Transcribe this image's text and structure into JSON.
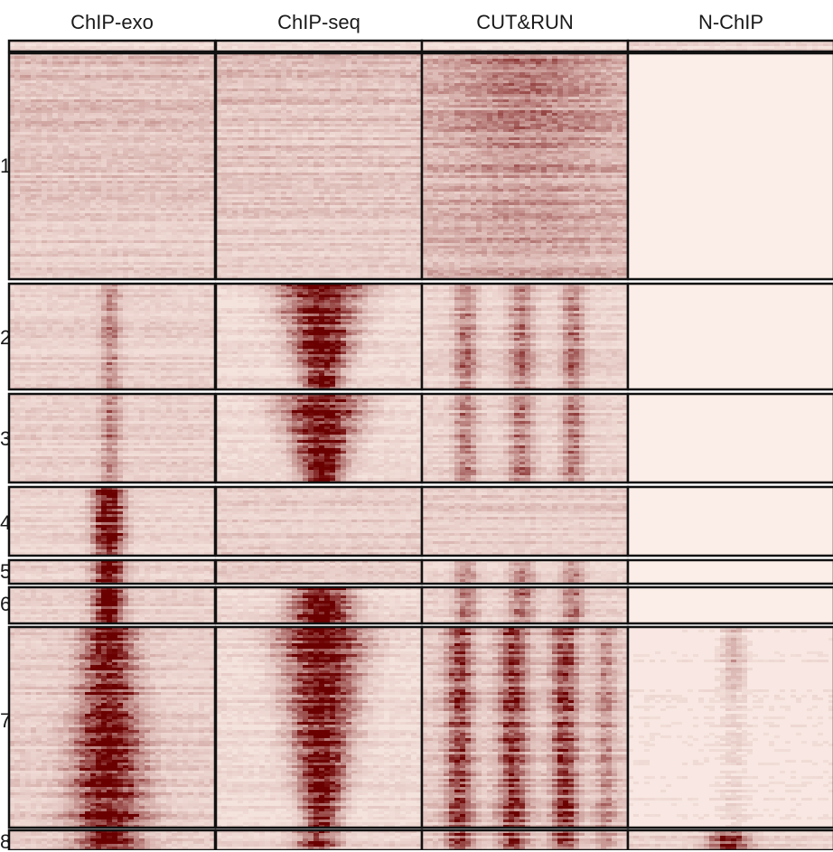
{
  "columns": [
    {
      "label": "ChIP-exo"
    },
    {
      "label": "ChIP-seq"
    },
    {
      "label": "CUT&RUN"
    },
    {
      "label": "N-ChIP"
    }
  ],
  "clusters": [
    {
      "label": "",
      "signal": {
        "ChIP-exo": "faint",
        "ChIP-seq": "faint",
        "CUT&RUN": "faint",
        "N-ChIP": "faint"
      }
    },
    {
      "label": "1",
      "signal": {
        "ChIP-exo": "diffuse",
        "ChIP-seq": "diffuse",
        "CUT&RUN": "diffuse-strong",
        "N-ChIP": "none"
      }
    },
    {
      "label": "2",
      "signal": {
        "ChIP-exo": "central-weak",
        "ChIP-seq": "central-strong-flared",
        "CUT&RUN": "periodic",
        "N-ChIP": "none"
      }
    },
    {
      "label": "3",
      "signal": {
        "ChIP-exo": "central-weak",
        "ChIP-seq": "central-strong-flared",
        "CUT&RUN": "periodic",
        "N-ChIP": "none"
      }
    },
    {
      "label": "4",
      "signal": {
        "ChIP-exo": "left-of-center-strong",
        "ChIP-seq": "weak",
        "CUT&RUN": "weak",
        "N-ChIP": "none"
      }
    },
    {
      "label": "5",
      "signal": {
        "ChIP-exo": "left-of-center-strong",
        "ChIP-seq": "weak",
        "CUT&RUN": "periodic",
        "N-ChIP": "none"
      }
    },
    {
      "label": "6",
      "signal": {
        "ChIP-exo": "left-of-center-strong",
        "ChIP-seq": "central-strong",
        "CUT&RUN": "periodic",
        "N-ChIP": "none"
      }
    },
    {
      "label": "7",
      "signal": {
        "ChIP-exo": "broad-strong",
        "ChIP-seq": "central-strong-flared",
        "CUT&RUN": "periodic-strong",
        "N-ChIP": "faint-central"
      }
    },
    {
      "label": "8",
      "signal": {
        "ChIP-exo": "broad-strong",
        "ChIP-seq": "central",
        "CUT&RUN": "periodic-strong",
        "N-ChIP": "central"
      }
    }
  ],
  "colors": {
    "low": "#fdf0ea",
    "high": "#6b0000",
    "border": "#111111"
  }
}
